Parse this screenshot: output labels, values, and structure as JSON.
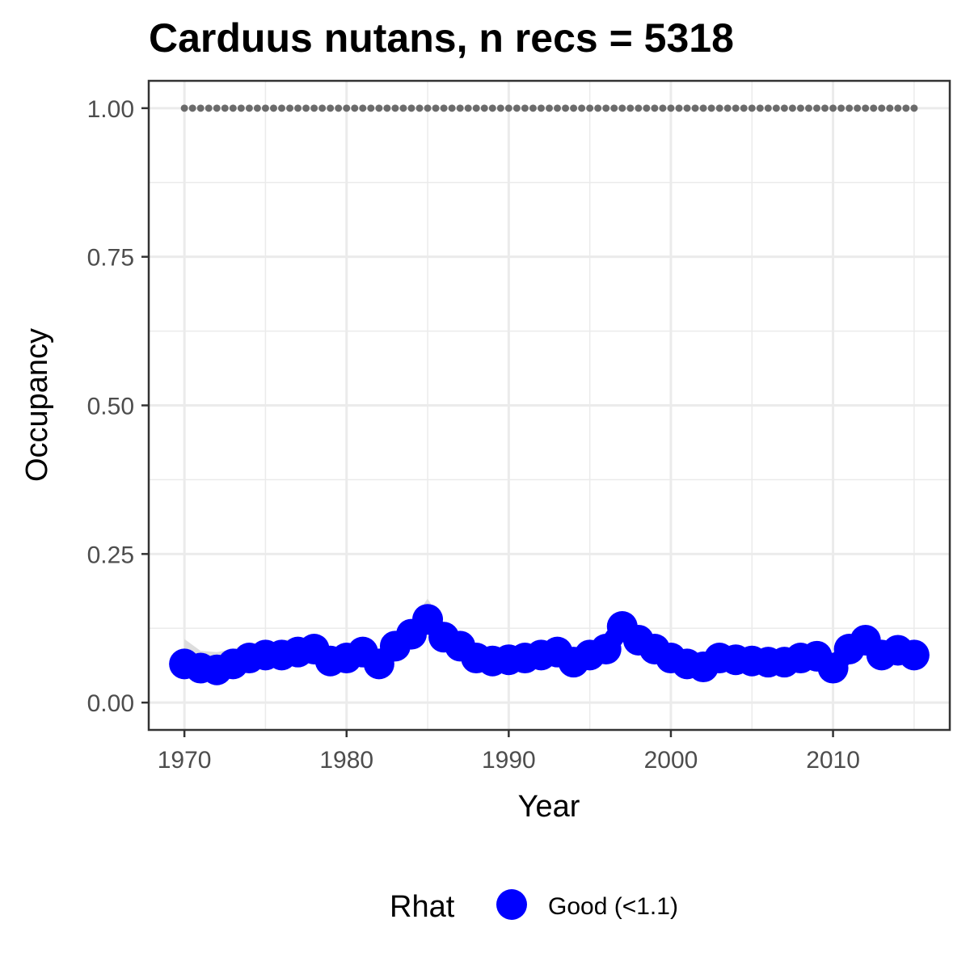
{
  "chart_data": {
    "type": "line",
    "title": "Carduus nutans, n recs = 5318",
    "xlabel": "Year",
    "ylabel": "Occupancy",
    "xlim": [
      1967.8,
      2017.2
    ],
    "ylim": [
      -0.046,
      1.046
    ],
    "x_ticks": [
      1970,
      1980,
      1990,
      2000,
      2010
    ],
    "x_tick_labels": [
      "1970",
      "1980",
      "1990",
      "2000",
      "2010"
    ],
    "y_ticks": [
      0,
      0.25,
      0.5,
      0.75,
      1.0
    ],
    "y_tick_labels": [
      "0.00",
      "0.25",
      "0.50",
      "0.75",
      "1.00"
    ],
    "grid": true,
    "legend": {
      "title": "Rhat",
      "position": "bottom",
      "entries": [
        {
          "label": "Good (<1.1)",
          "color": "#0000ff"
        }
      ]
    },
    "colors": {
      "points": "#0000ff",
      "ribbon": "#d9d9d9",
      "reference": "#6b6b6b",
      "grid": "#ebebeb",
      "panel_border": "#333333"
    },
    "x": [
      1970,
      1971,
      1972,
      1973,
      1974,
      1975,
      1976,
      1977,
      1978,
      1979,
      1980,
      1981,
      1982,
      1983,
      1984,
      1985,
      1986,
      1987,
      1988,
      1989,
      1990,
      1991,
      1992,
      1993,
      1994,
      1995,
      1996,
      1997,
      1998,
      1999,
      2000,
      2001,
      2002,
      2003,
      2004,
      2005,
      2006,
      2007,
      2008,
      2009,
      2010,
      2011,
      2012,
      2013,
      2014,
      2015
    ],
    "series": [
      {
        "name": "Good (<1.1)",
        "values": [
          0.065,
          0.058,
          0.055,
          0.065,
          0.075,
          0.08,
          0.08,
          0.085,
          0.09,
          0.07,
          0.075,
          0.085,
          0.065,
          0.095,
          0.115,
          0.14,
          0.11,
          0.095,
          0.075,
          0.07,
          0.072,
          0.075,
          0.08,
          0.085,
          0.068,
          0.08,
          0.09,
          0.128,
          0.105,
          0.09,
          0.075,
          0.065,
          0.06,
          0.075,
          0.072,
          0.07,
          0.068,
          0.068,
          0.075,
          0.078,
          0.058,
          0.09,
          0.105,
          0.08,
          0.088,
          0.08
        ]
      }
    ],
    "ribbon_lower": [
      0.045,
      0.045,
      0.045,
      0.05,
      0.06,
      0.065,
      0.065,
      0.07,
      0.075,
      0.058,
      0.062,
      0.07,
      0.055,
      0.08,
      0.098,
      0.12,
      0.095,
      0.08,
      0.063,
      0.058,
      0.06,
      0.063,
      0.067,
      0.072,
      0.056,
      0.067,
      0.076,
      0.112,
      0.09,
      0.076,
      0.063,
      0.053,
      0.05,
      0.063,
      0.06,
      0.058,
      0.056,
      0.056,
      0.063,
      0.066,
      0.048,
      0.076,
      0.09,
      0.067,
      0.075,
      0.067
    ],
    "ribbon_upper": [
      0.107,
      0.087,
      0.085,
      0.09,
      0.1,
      0.1,
      0.105,
      0.108,
      0.113,
      0.09,
      0.092,
      0.103,
      0.082,
      0.113,
      0.135,
      0.175,
      0.13,
      0.112,
      0.09,
      0.084,
      0.087,
      0.09,
      0.095,
      0.1,
      0.082,
      0.095,
      0.106,
      0.148,
      0.122,
      0.106,
      0.09,
      0.08,
      0.074,
      0.09,
      0.087,
      0.085,
      0.082,
      0.082,
      0.09,
      0.093,
      0.072,
      0.107,
      0.122,
      0.095,
      0.103,
      0.095
    ],
    "reference_line": {
      "y": 1.0,
      "style": "dotted"
    }
  }
}
